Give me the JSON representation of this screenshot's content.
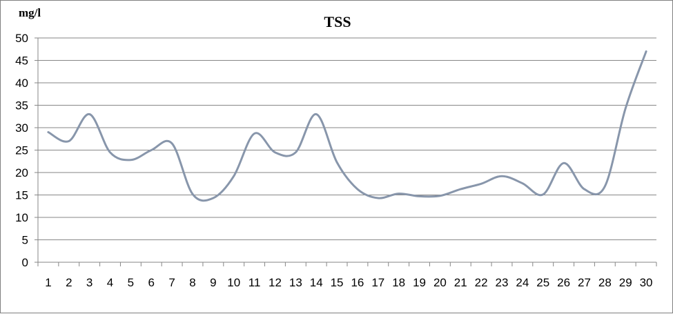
{
  "chart_data": {
    "type": "line",
    "title": "TSS",
    "ylabel": "mg/l",
    "xlabel": "",
    "categories": [
      "1",
      "2",
      "3",
      "4",
      "5",
      "6",
      "7",
      "8",
      "9",
      "10",
      "11",
      "12",
      "13",
      "14",
      "15",
      "16",
      "17",
      "18",
      "19",
      "20",
      "21",
      "22",
      "23",
      "24",
      "25",
      "26",
      "27",
      "28",
      "29",
      "30"
    ],
    "series": [
      {
        "values": [
          29,
          27,
          33,
          24.5,
          22.8,
          25,
          26.5,
          15.2,
          14.3,
          19.2,
          28.7,
          24.5,
          24.5,
          33,
          22.3,
          16.3,
          14.3,
          15.3,
          14.7,
          14.8,
          16.3,
          17.5,
          19.2,
          17.6,
          15.1,
          22.1,
          16.3,
          16.9,
          34.3,
          47
        ]
      }
    ],
    "ylim": [
      0,
      50
    ],
    "yticks": [
      "0",
      "5",
      "10",
      "15",
      "20",
      "25",
      "30",
      "35",
      "40",
      "45",
      "50"
    ],
    "grid": true,
    "legend": "none",
    "line_color": "#8896ab"
  }
}
